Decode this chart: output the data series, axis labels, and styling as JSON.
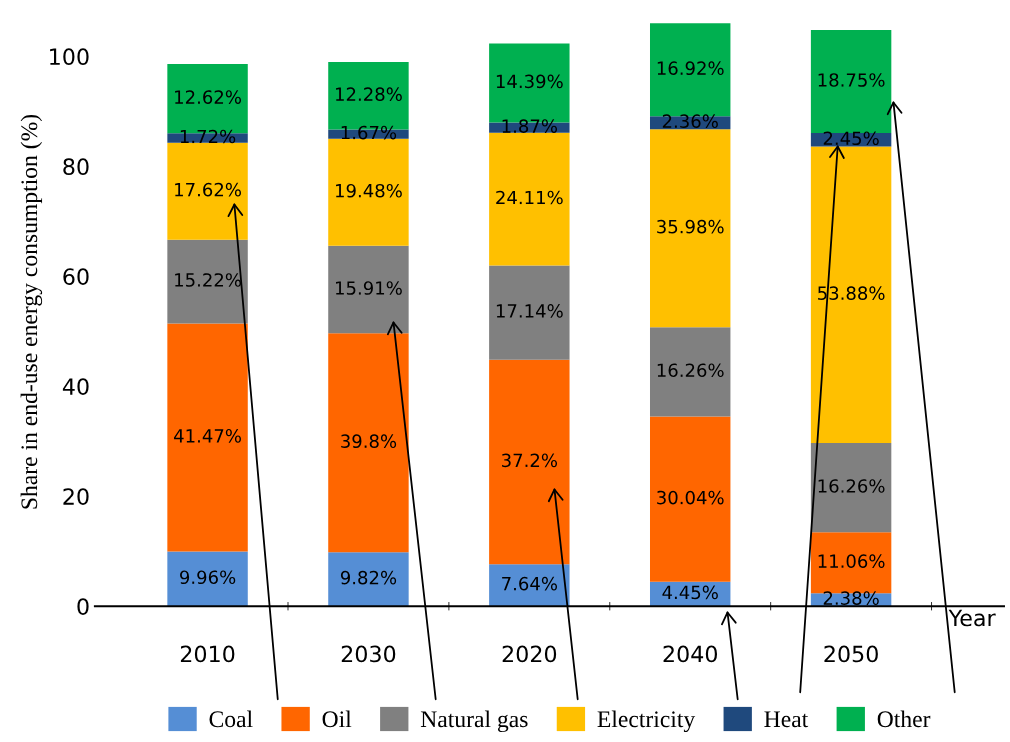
{
  "chart_data": {
    "type": "bar",
    "stacked": true,
    "ylabel": "Share in end-use energy consumption (%)",
    "xlabel": "Year",
    "categories": [
      "2010",
      "2030",
      "2020",
      "2040",
      "2050"
    ],
    "ylim": [
      0,
      107
    ],
    "yticks": [
      0,
      20,
      40,
      60,
      80,
      100
    ],
    "grid": false,
    "legend": "bottom",
    "series": [
      {
        "name": "Coal",
        "color": "#558ed5",
        "values": [
          9.96,
          9.82,
          7.64,
          4.45,
          2.38
        ],
        "value_labels": [
          "9.96%",
          "9.82%",
          "7.64%",
          "4.45%",
          "2.38%"
        ]
      },
      {
        "name": "Oil",
        "color": "#ff6600",
        "values": [
          41.47,
          39.8,
          37.2,
          30.04,
          11.06
        ],
        "value_labels": [
          "41.47%",
          "39.8%",
          "37.2%",
          "30.04%",
          "11.06%"
        ]
      },
      {
        "name": "Natural gas",
        "color": "#808080",
        "values": [
          15.22,
          15.91,
          17.14,
          16.26,
          16.26
        ],
        "value_labels": [
          "15.22%",
          "15.91%",
          "17.14%",
          "16.26%",
          "16.26%"
        ]
      },
      {
        "name": "Electricity",
        "color": "#ffc000",
        "values": [
          17.62,
          19.48,
          24.11,
          35.98,
          53.88
        ],
        "value_labels": [
          "17.62%",
          "19.48%",
          "24.11%",
          "35.98%",
          "53.88%"
        ]
      },
      {
        "name": "Heat",
        "color": "#1f497d",
        "values": [
          1.72,
          1.67,
          1.87,
          2.36,
          2.45
        ],
        "value_labels": [
          "1.72%",
          "1.67%",
          "1.87%",
          "2.36%",
          "2.45%"
        ]
      },
      {
        "name": "Other",
        "color": "#00b050",
        "values": [
          12.62,
          12.28,
          14.39,
          16.92,
          18.75
        ],
        "value_labels": [
          "12.62%",
          "12.28%",
          "14.39%",
          "16.92%",
          "18.75%"
        ]
      }
    ]
  }
}
